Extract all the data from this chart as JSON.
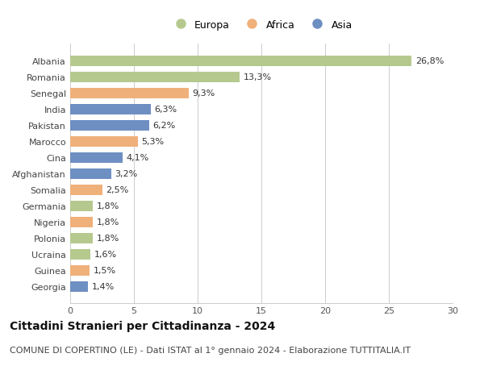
{
  "categories": [
    "Albania",
    "Romania",
    "Senegal",
    "India",
    "Pakistan",
    "Marocco",
    "Cina",
    "Afghanistan",
    "Somalia",
    "Germania",
    "Nigeria",
    "Polonia",
    "Ucraina",
    "Guinea",
    "Georgia"
  ],
  "values": [
    26.8,
    13.3,
    9.3,
    6.3,
    6.2,
    5.3,
    4.1,
    3.2,
    2.5,
    1.8,
    1.8,
    1.8,
    1.6,
    1.5,
    1.4
  ],
  "labels": [
    "26,8%",
    "13,3%",
    "9,3%",
    "6,3%",
    "6,2%",
    "5,3%",
    "4,1%",
    "3,2%",
    "2,5%",
    "1,8%",
    "1,8%",
    "1,8%",
    "1,6%",
    "1,5%",
    "1,4%"
  ],
  "colors": [
    "#b5c98e",
    "#b5c98e",
    "#f0b07a",
    "#6e8fc2",
    "#6e8fc2",
    "#f0b07a",
    "#6e8fc2",
    "#6e8fc2",
    "#f0b07a",
    "#b5c98e",
    "#f0b07a",
    "#b5c98e",
    "#b5c98e",
    "#f0b07a",
    "#6e8fc2"
  ],
  "legend": [
    {
      "label": "Europa",
      "color": "#b5c98e"
    },
    {
      "label": "Africa",
      "color": "#f0b07a"
    },
    {
      "label": "Asia",
      "color": "#6e8fc2"
    }
  ],
  "xlim": [
    0,
    30
  ],
  "xticks": [
    0,
    5,
    10,
    15,
    20,
    25,
    30
  ],
  "title": "Cittadini Stranieri per Cittadinanza - 2024",
  "subtitle": "COMUNE DI COPERTINO (LE) - Dati ISTAT al 1° gennaio 2024 - Elaborazione TUTTITALIA.IT",
  "title_fontsize": 10,
  "subtitle_fontsize": 8,
  "background_color": "#ffffff",
  "grid_color": "#cccccc",
  "label_fontsize": 8,
  "tick_fontsize": 8
}
